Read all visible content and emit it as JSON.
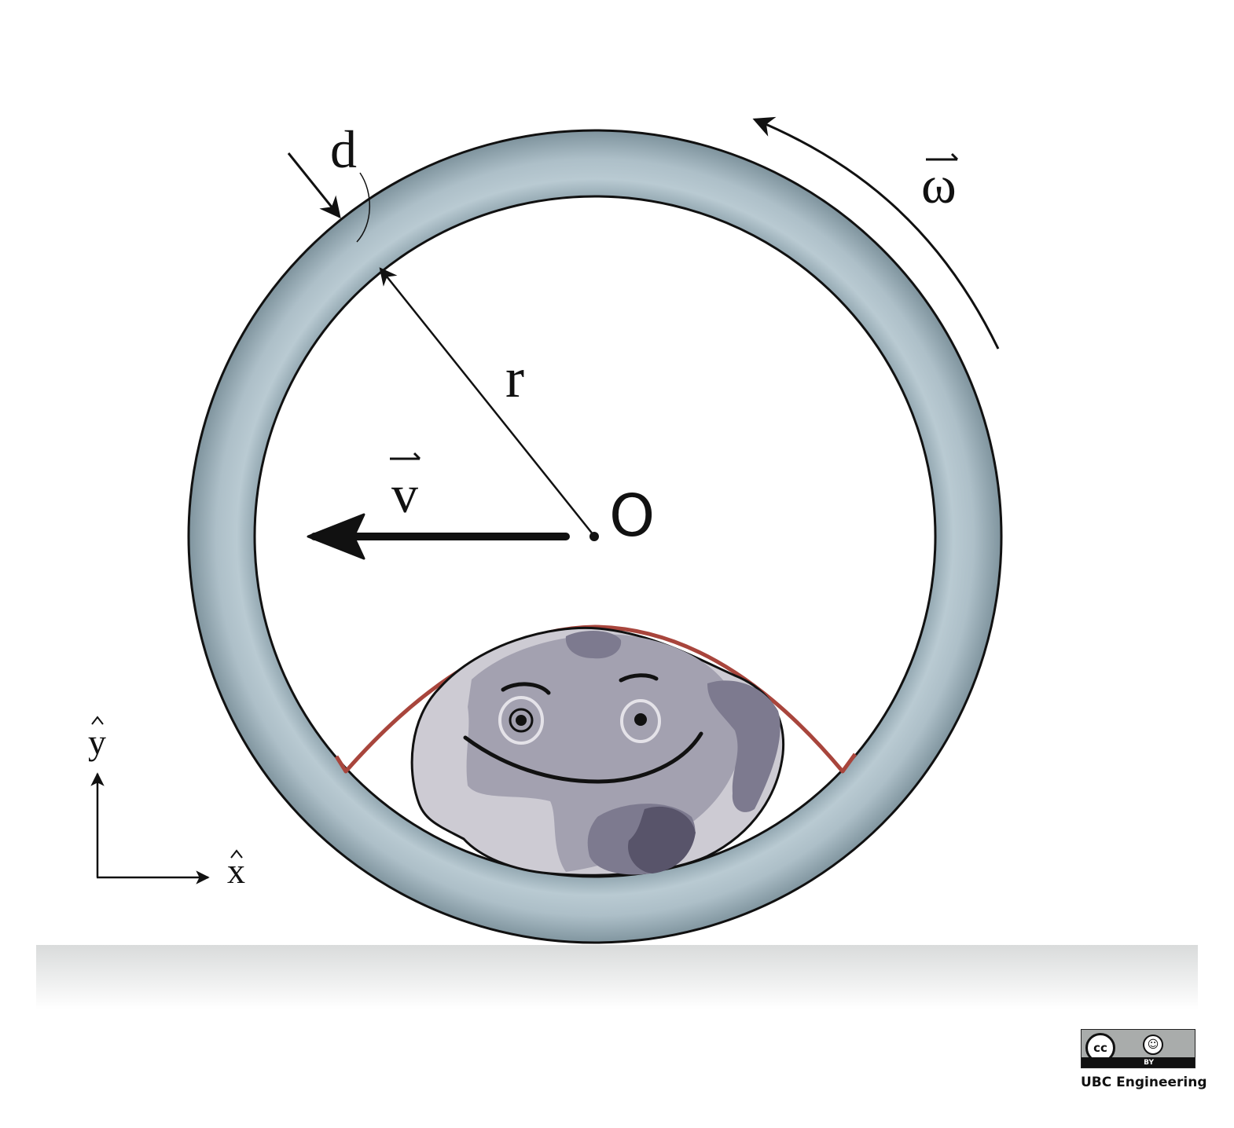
{
  "labels": {
    "thickness": "d",
    "radius": "r",
    "velocity": "v",
    "angular_velocity": "ω",
    "center": "O",
    "axis_x": "x",
    "axis_y": "y"
  },
  "license": {
    "badge_cc": "cc",
    "badge_by": "BY",
    "credit": "UBC Engineering"
  },
  "colors": {
    "ring_fill": "#a9bcc5",
    "ring_stroke": "#111111",
    "rock_light": "#cdcbd3",
    "rock_mid": "#a3a1b0",
    "rock_dark": "#58546a",
    "strap": "#a8453c",
    "ground": "#e6e7e7"
  }
}
